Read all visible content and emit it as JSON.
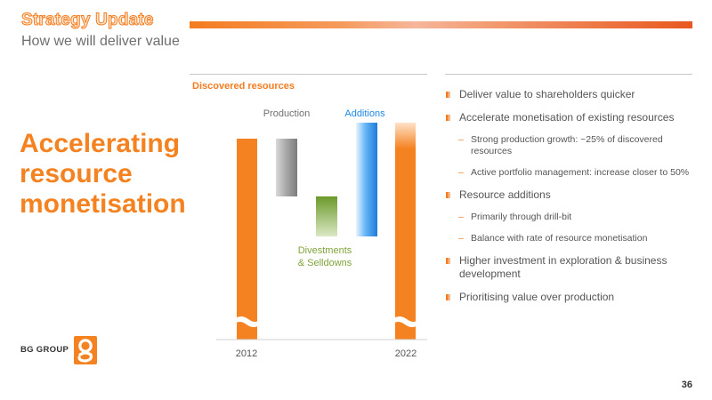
{
  "header": {
    "title": "Strategy Update",
    "subtitle": "How we will deliver value"
  },
  "headline": {
    "line1": "Accelerating",
    "line2": "resource",
    "line3": "monetisation"
  },
  "chart": {
    "title": "Discovered resources",
    "labels": {
      "production": "Production",
      "additions": "Additions",
      "divestments_line1": "Divestments",
      "divestments_line2": "& Selldowns",
      "year_start": "2012",
      "year_end": "2022"
    }
  },
  "chart_data": {
    "type": "waterfall",
    "title": "Discovered resources",
    "categories": [
      "2012",
      "Production",
      "Divestments & Selldowns",
      "Additions",
      "2022"
    ],
    "segments": [
      {
        "label": "2012",
        "start": 0,
        "end": 100,
        "color": "#f58220"
      },
      {
        "label": "Production",
        "start": 100,
        "end": 71,
        "color": "#9a9a9a"
      },
      {
        "label": "Divestments & Selldowns",
        "start": 71,
        "end": 48,
        "color": "#7fa33a"
      },
      {
        "label": "Additions",
        "start": 48,
        "end": 107,
        "color": "#1e88e5"
      },
      {
        "label": "2022",
        "start": 0,
        "end": 107,
        "color": "#f58220"
      }
    ],
    "axis_break": true,
    "values_labelled": false
  },
  "bullets": [
    {
      "level": 1,
      "text": "Deliver value to shareholders quicker"
    },
    {
      "level": 1,
      "text": "Accelerate monetisation of existing resources"
    },
    {
      "level": 2,
      "text": "Strong production growth: ~25% of discovered resources"
    },
    {
      "level": 2,
      "text": "Active portfolio management: increase closer to 50%"
    },
    {
      "level": 1,
      "text": "Resource additions"
    },
    {
      "level": 2,
      "text": "Primarily through drill-bit"
    },
    {
      "level": 2,
      "text": "Balance with rate of resource monetisation"
    },
    {
      "level": 1,
      "text": "Higher investment in exploration & business development"
    },
    {
      "level": 1,
      "text": "Prioritising value over production"
    }
  ],
  "footer": {
    "logo_text": "BG GROUP",
    "logo_mark": "bg-g-logo",
    "page_number": "36"
  },
  "colors": {
    "brand_orange": "#f58220",
    "production_gray": "#9a9a9a",
    "divestments_green": "#7fa33a",
    "additions_blue": "#1e88e5"
  }
}
